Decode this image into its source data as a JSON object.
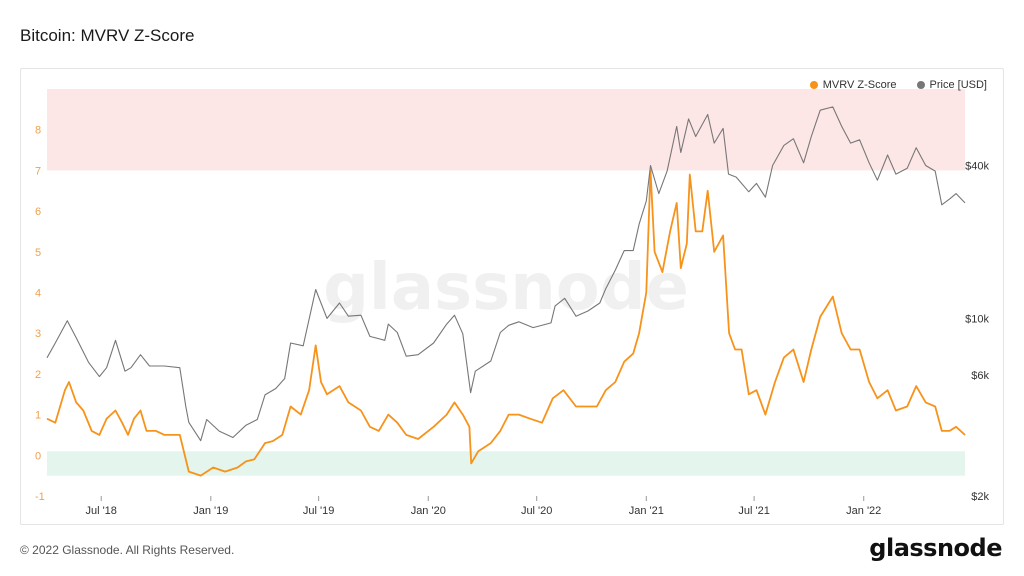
{
  "page": {
    "title": "Bitcoin: MVRV Z-Score",
    "copyright": "© 2022 Glassnode. All Rights Reserved.",
    "brand": "glassnode",
    "watermark": "glassnode"
  },
  "colors": {
    "zscore": "#f7931a",
    "price": "#777777",
    "overvalued_zone": "#fde6e6",
    "undervalued_zone": "#e3f5ec",
    "left_axis_text": "#f0a04b",
    "right_axis_text": "#333333"
  },
  "chart_data": {
    "type": "line",
    "title": "Bitcoin: MVRV Z-Score",
    "legend": [
      {
        "name": "MVRV Z-Score",
        "color": "#f7931a"
      },
      {
        "name": "Price [USD]",
        "color": "#777777"
      }
    ],
    "legend_position": "top-right",
    "x_ticks": [
      "Jul '18",
      "Jan '19",
      "Jul '19",
      "Jan '20",
      "Jul '20",
      "Jan '21",
      "Jul '21",
      "Jan '22"
    ],
    "x_tick_dates": [
      "2018-07-01",
      "2019-01-01",
      "2019-07-01",
      "2020-01-01",
      "2020-07-01",
      "2021-01-01",
      "2021-07-01",
      "2022-01-01"
    ],
    "x_range": [
      "2018-04-01",
      "2022-06-20"
    ],
    "left_axis": {
      "ticks": [
        "-1",
        "0",
        "1",
        "2",
        "3",
        "4",
        "5",
        "6",
        "7",
        "8"
      ],
      "range": [
        -1,
        9
      ]
    },
    "right_axis": {
      "scale": "log",
      "ticks": [
        "$2k",
        "$6k",
        "$10k",
        "$40k"
      ],
      "tick_values": [
        2000,
        6000,
        10000,
        40000
      ],
      "range": [
        2000,
        80000
      ]
    },
    "zones": [
      {
        "name": "overvalued",
        "from": 7,
        "to": 9
      },
      {
        "name": "undervalued",
        "from": -0.5,
        "to": 0.1
      }
    ],
    "grid": false,
    "series": [
      {
        "name": "MVRV Z-Score",
        "axis": "left",
        "points": [
          [
            "2018-04-01",
            0.9
          ],
          [
            "2018-04-15",
            0.8
          ],
          [
            "2018-05-01",
            1.6
          ],
          [
            "2018-05-08",
            1.8
          ],
          [
            "2018-05-20",
            1.3
          ],
          [
            "2018-06-01",
            1.1
          ],
          [
            "2018-06-15",
            0.6
          ],
          [
            "2018-06-28",
            0.5
          ],
          [
            "2018-07-10",
            0.9
          ],
          [
            "2018-07-25",
            1.1
          ],
          [
            "2018-08-05",
            0.8
          ],
          [
            "2018-08-15",
            0.5
          ],
          [
            "2018-08-25",
            0.9
          ],
          [
            "2018-09-05",
            1.1
          ],
          [
            "2018-09-15",
            0.6
          ],
          [
            "2018-10-01",
            0.6
          ],
          [
            "2018-10-15",
            0.5
          ],
          [
            "2018-11-10",
            0.5
          ],
          [
            "2018-11-20",
            -0.1
          ],
          [
            "2018-11-25",
            -0.4
          ],
          [
            "2018-12-15",
            -0.5
          ],
          [
            "2019-01-05",
            -0.3
          ],
          [
            "2019-01-25",
            -0.4
          ],
          [
            "2019-02-15",
            -0.3
          ],
          [
            "2019-03-01",
            -0.15
          ],
          [
            "2019-03-15",
            -0.1
          ],
          [
            "2019-04-02",
            0.3
          ],
          [
            "2019-04-15",
            0.35
          ],
          [
            "2019-05-01",
            0.5
          ],
          [
            "2019-05-15",
            1.2
          ],
          [
            "2019-06-01",
            1.0
          ],
          [
            "2019-06-15",
            1.6
          ],
          [
            "2019-06-26",
            2.7
          ],
          [
            "2019-07-05",
            1.8
          ],
          [
            "2019-07-15",
            1.5
          ],
          [
            "2019-08-05",
            1.7
          ],
          [
            "2019-08-20",
            1.3
          ],
          [
            "2019-09-10",
            1.1
          ],
          [
            "2019-09-25",
            0.7
          ],
          [
            "2019-10-10",
            0.6
          ],
          [
            "2019-10-26",
            1.0
          ],
          [
            "2019-11-10",
            0.8
          ],
          [
            "2019-11-25",
            0.5
          ],
          [
            "2019-12-15",
            0.4
          ],
          [
            "2020-01-10",
            0.7
          ],
          [
            "2020-02-01",
            1.0
          ],
          [
            "2020-02-14",
            1.3
          ],
          [
            "2020-02-28",
            1.0
          ],
          [
            "2020-03-10",
            0.7
          ],
          [
            "2020-03-13",
            -0.2
          ],
          [
            "2020-03-25",
            0.1
          ],
          [
            "2020-04-15",
            0.3
          ],
          [
            "2020-05-01",
            0.6
          ],
          [
            "2020-05-15",
            1.0
          ],
          [
            "2020-06-01",
            1.0
          ],
          [
            "2020-06-20",
            0.9
          ],
          [
            "2020-07-10",
            0.8
          ],
          [
            "2020-07-28",
            1.4
          ],
          [
            "2020-08-15",
            1.6
          ],
          [
            "2020-09-05",
            1.2
          ],
          [
            "2020-09-20",
            1.2
          ],
          [
            "2020-10-10",
            1.2
          ],
          [
            "2020-10-25",
            1.6
          ],
          [
            "2020-11-10",
            1.8
          ],
          [
            "2020-11-25",
            2.3
          ],
          [
            "2020-12-10",
            2.5
          ],
          [
            "2020-12-20",
            3.0
          ],
          [
            "2021-01-01",
            4.0
          ],
          [
            "2021-01-08",
            7.0
          ],
          [
            "2021-01-15",
            5.0
          ],
          [
            "2021-01-28",
            4.5
          ],
          [
            "2021-02-10",
            5.5
          ],
          [
            "2021-02-21",
            6.2
          ],
          [
            "2021-02-28",
            4.6
          ],
          [
            "2021-03-10",
            5.2
          ],
          [
            "2021-03-15",
            6.9
          ],
          [
            "2021-03-25",
            5.5
          ],
          [
            "2021-04-05",
            5.5
          ],
          [
            "2021-04-14",
            6.5
          ],
          [
            "2021-04-25",
            5.0
          ],
          [
            "2021-05-10",
            5.4
          ],
          [
            "2021-05-20",
            3.0
          ],
          [
            "2021-05-30",
            2.6
          ],
          [
            "2021-06-10",
            2.6
          ],
          [
            "2021-06-22",
            1.5
          ],
          [
            "2021-07-05",
            1.6
          ],
          [
            "2021-07-20",
            1.0
          ],
          [
            "2021-08-05",
            1.8
          ],
          [
            "2021-08-20",
            2.4
          ],
          [
            "2021-09-05",
            2.6
          ],
          [
            "2021-09-22",
            1.8
          ],
          [
            "2021-10-05",
            2.6
          ],
          [
            "2021-10-20",
            3.4
          ],
          [
            "2021-11-10",
            3.9
          ],
          [
            "2021-11-25",
            3.0
          ],
          [
            "2021-12-10",
            2.6
          ],
          [
            "2021-12-25",
            2.6
          ],
          [
            "2022-01-10",
            1.8
          ],
          [
            "2022-01-24",
            1.4
          ],
          [
            "2022-02-10",
            1.6
          ],
          [
            "2022-02-24",
            1.1
          ],
          [
            "2022-03-15",
            1.2
          ],
          [
            "2022-03-30",
            1.7
          ],
          [
            "2022-04-15",
            1.3
          ],
          [
            "2022-05-01",
            1.2
          ],
          [
            "2022-05-12",
            0.6
          ],
          [
            "2022-05-25",
            0.6
          ],
          [
            "2022-06-05",
            0.7
          ],
          [
            "2022-06-20",
            0.5
          ]
        ]
      },
      {
        "name": "Price [USD]",
        "axis": "right",
        "points": [
          [
            "2018-04-01",
            7000
          ],
          [
            "2018-04-15",
            8000
          ],
          [
            "2018-05-05",
            9800
          ],
          [
            "2018-05-20",
            8400
          ],
          [
            "2018-06-10",
            6700
          ],
          [
            "2018-06-28",
            5900
          ],
          [
            "2018-07-10",
            6400
          ],
          [
            "2018-07-25",
            8200
          ],
          [
            "2018-08-10",
            6200
          ],
          [
            "2018-08-20",
            6400
          ],
          [
            "2018-09-05",
            7200
          ],
          [
            "2018-09-20",
            6500
          ],
          [
            "2018-10-15",
            6500
          ],
          [
            "2018-11-10",
            6400
          ],
          [
            "2018-11-20",
            4500
          ],
          [
            "2018-11-25",
            3900
          ],
          [
            "2018-12-15",
            3300
          ],
          [
            "2018-12-25",
            4000
          ],
          [
            "2019-01-15",
            3600
          ],
          [
            "2019-02-07",
            3400
          ],
          [
            "2019-03-01",
            3800
          ],
          [
            "2019-03-20",
            4000
          ],
          [
            "2019-04-02",
            5000
          ],
          [
            "2019-04-20",
            5300
          ],
          [
            "2019-05-05",
            5800
          ],
          [
            "2019-05-15",
            8000
          ],
          [
            "2019-06-05",
            7800
          ],
          [
            "2019-06-26",
            13000
          ],
          [
            "2019-07-15",
            10000
          ],
          [
            "2019-08-05",
            11500
          ],
          [
            "2019-08-20",
            10200
          ],
          [
            "2019-09-10",
            10300
          ],
          [
            "2019-09-25",
            8500
          ],
          [
            "2019-10-20",
            8200
          ],
          [
            "2019-10-26",
            9500
          ],
          [
            "2019-11-10",
            8800
          ],
          [
            "2019-11-25",
            7100
          ],
          [
            "2019-12-15",
            7200
          ],
          [
            "2020-01-10",
            8000
          ],
          [
            "2020-02-01",
            9500
          ],
          [
            "2020-02-14",
            10300
          ],
          [
            "2020-02-28",
            8700
          ],
          [
            "2020-03-12",
            5100
          ],
          [
            "2020-03-20",
            6200
          ],
          [
            "2020-04-15",
            6800
          ],
          [
            "2020-05-01",
            8800
          ],
          [
            "2020-05-15",
            9400
          ],
          [
            "2020-06-01",
            9700
          ],
          [
            "2020-06-25",
            9200
          ],
          [
            "2020-07-25",
            9600
          ],
          [
            "2020-08-01",
            11200
          ],
          [
            "2020-08-17",
            12000
          ],
          [
            "2020-09-05",
            10200
          ],
          [
            "2020-09-25",
            10700
          ],
          [
            "2020-10-15",
            11500
          ],
          [
            "2020-10-25",
            13100
          ],
          [
            "2020-11-10",
            15500
          ],
          [
            "2020-11-25",
            18500
          ],
          [
            "2020-12-10",
            18500
          ],
          [
            "2020-12-20",
            23500
          ],
          [
            "2021-01-01",
            29000
          ],
          [
            "2021-01-08",
            40000
          ],
          [
            "2021-01-22",
            31000
          ],
          [
            "2021-02-05",
            38000
          ],
          [
            "2021-02-21",
            57000
          ],
          [
            "2021-02-28",
            45000
          ],
          [
            "2021-03-13",
            61000
          ],
          [
            "2021-03-25",
            52000
          ],
          [
            "2021-04-14",
            63500
          ],
          [
            "2021-04-25",
            49000
          ],
          [
            "2021-05-10",
            56000
          ],
          [
            "2021-05-19",
            37000
          ],
          [
            "2021-06-01",
            36000
          ],
          [
            "2021-06-22",
            31500
          ],
          [
            "2021-07-05",
            34000
          ],
          [
            "2021-07-20",
            30000
          ],
          [
            "2021-08-01",
            40000
          ],
          [
            "2021-08-20",
            48000
          ],
          [
            "2021-09-05",
            51000
          ],
          [
            "2021-09-22",
            41000
          ],
          [
            "2021-10-05",
            52000
          ],
          [
            "2021-10-20",
            66000
          ],
          [
            "2021-11-10",
            68000
          ],
          [
            "2021-11-25",
            57000
          ],
          [
            "2021-12-10",
            49000
          ],
          [
            "2021-12-25",
            50500
          ],
          [
            "2022-01-10",
            41000
          ],
          [
            "2022-01-24",
            35000
          ],
          [
            "2022-02-10",
            44000
          ],
          [
            "2022-02-24",
            37000
          ],
          [
            "2022-03-15",
            39000
          ],
          [
            "2022-03-30",
            47000
          ],
          [
            "2022-04-15",
            40000
          ],
          [
            "2022-05-01",
            38000
          ],
          [
            "2022-05-12",
            28000
          ],
          [
            "2022-05-25",
            29500
          ],
          [
            "2022-06-05",
            31000
          ],
          [
            "2022-06-20",
            28500
          ]
        ]
      }
    ]
  }
}
